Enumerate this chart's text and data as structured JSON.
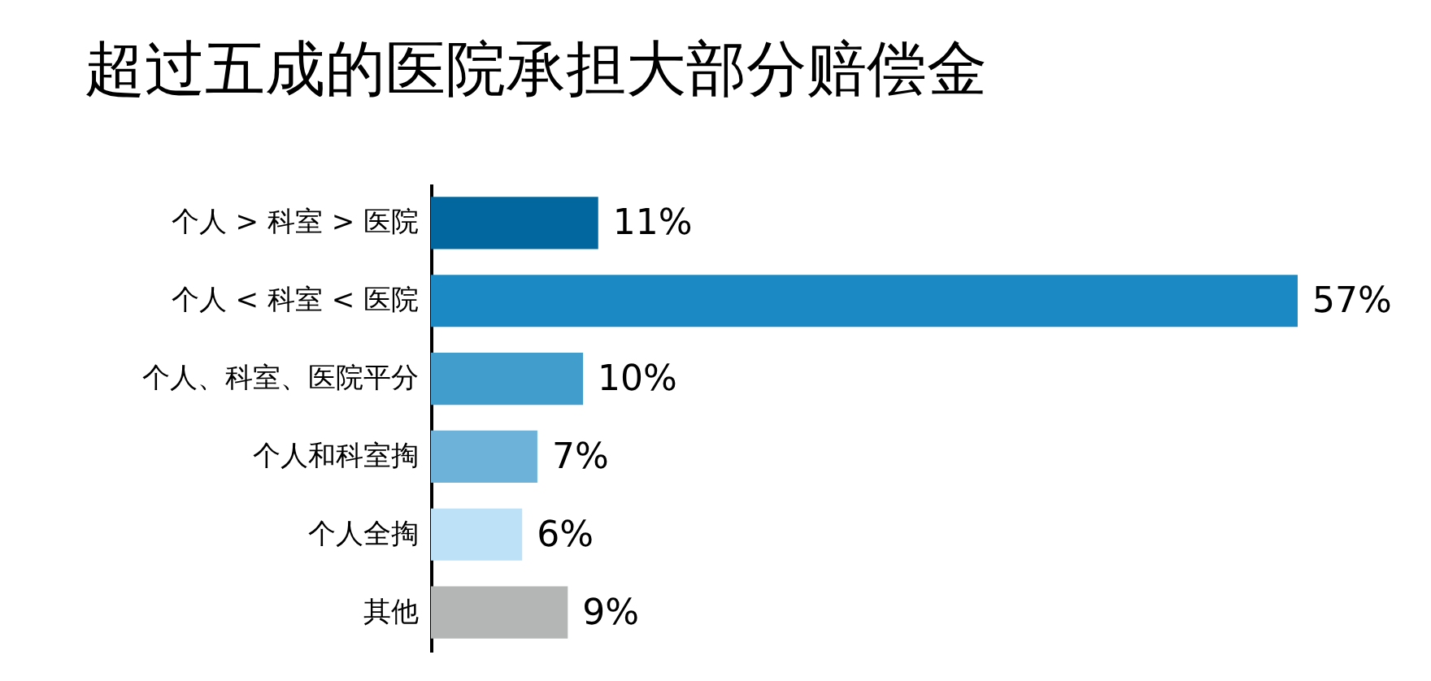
{
  "chart_data": {
    "type": "bar",
    "orientation": "horizontal",
    "title": "超过五成的医院承担大部分赔偿金",
    "categories": [
      "个人 > 科室 > 医院",
      "个人 < 科室 < 医院",
      "个人、科室、医院平分",
      "个人和科室掏",
      "个人全掏",
      "其他"
    ],
    "values": [
      11,
      57,
      10,
      7,
      6,
      9
    ],
    "value_labels": [
      "11%",
      "57%",
      "10%",
      "7%",
      "6%",
      "9%"
    ],
    "colors": [
      "#02679e",
      "#1b89c4",
      "#419dcc",
      "#6cb2d9",
      "#bde1f6",
      "#b4b5b5"
    ]
  }
}
